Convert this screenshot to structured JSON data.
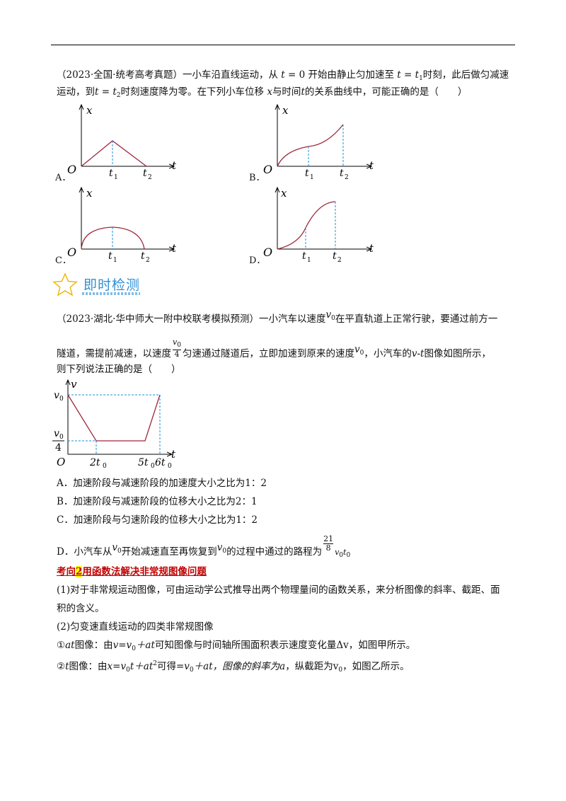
{
  "q1": {
    "source": "（2023·全国·统考高考真题）",
    "line1_a": "一小车沿直线运动，从",
    "t": "t",
    "eq": "=",
    "zero": "0",
    "line1_b": "开始由静止匀加速至",
    "t1": "t",
    "t1_sub": "1",
    "line1_c": "时刻，此后做匀减速",
    "line2_a": "运动，到",
    "t2_sub": "2",
    "line2_b": "时刻速度降为零。在下列小车位移",
    "x": "x",
    "line2_c": "与时间",
    "line2_d": "的关系曲线中，可能正确的是（　　）",
    "options": {
      "a": "A．",
      "b": "B．",
      "c": "C．",
      "d": "D．"
    },
    "graph_labels": {
      "origin": "O",
      "x_axis": "t",
      "y_axis": "x",
      "t": "t",
      "sub1": "1",
      "sub2": "2"
    }
  },
  "badge": {
    "text": "即时检测",
    "icon": "star-outline-icon",
    "color": "#2f8fd6",
    "star_color": "#f0b400"
  },
  "q2": {
    "source": "（2023·湖北·华中师大一附中校联考模拟预测）",
    "line1_a": "一小汽车以速度",
    "v": "v",
    "v_sub": "0",
    "line1_b": "在平直轨道上正常行驶，要通过前方一",
    "line2_a": "隧道，需提前减速，以速度",
    "frac_den": "4",
    "line2_b": "匀速通过隧道后，立即加速到原来的速度",
    "line2_c": "，小汽车的",
    "vt": "v-t",
    "line2_d": "图像如图所示，",
    "line3": "则下列说法正确的是（　　）",
    "graph": {
      "y_axis": "v",
      "x_axis": "t",
      "origin": "O",
      "v0": "v",
      "sub0": "0",
      "den4": "4",
      "tick_2t0": "2t",
      "tick_5t0": "5t",
      "tick_6t0": "6t"
    },
    "choices": [
      "A．加速阶段与减速阶段的加速度大小之比为1：2",
      "B．加速阶段与减速阶段的位移大小之比为2：1",
      "C．加速阶段与匀速阶段的位移大小之比为1：2"
    ],
    "choice_d_a": "D．小汽车从",
    "choice_d_b": "开始减速直至再恢复到",
    "choice_d_c": "的过程中通过的路程为",
    "frac21": "21",
    "frac8": "8",
    "vt0": "v"
  },
  "section2": {
    "prefix": "考向",
    "num": "2",
    "title": "用函数法解决非常规图像问题"
  },
  "para1_line1": "(1)对于非常规运动图像，可由运动学公式推导出两个物理量间的函数关系，来分析图像的斜率、截距、面",
  "para1_line2": "积的含义。",
  "para2": "(2)匀变速直线运动的四类非常规图像",
  "item1": {
    "circle": "①",
    "at": "a",
    "t": "t",
    "a_text": "图像：由",
    "formula": "v=v",
    "f_sub": "0",
    "f_tail": "＋at",
    "b_text": "可知图像与时间轴所围面积表示速度变化量Δv，如图甲所示。"
  },
  "item2": {
    "circle": "②",
    "t": "t",
    "a_text": "图像：由",
    "x_eq": "x=v",
    "sub0": "0",
    "tail1": "t＋at",
    "sup2": "2",
    "b_text": "可得",
    "eq2": "=v",
    "tail2": "＋at，图像的斜率为",
    "a": "a",
    "c_text": "，纵截距为v",
    "d_text": "，如图乙所示。"
  }
}
